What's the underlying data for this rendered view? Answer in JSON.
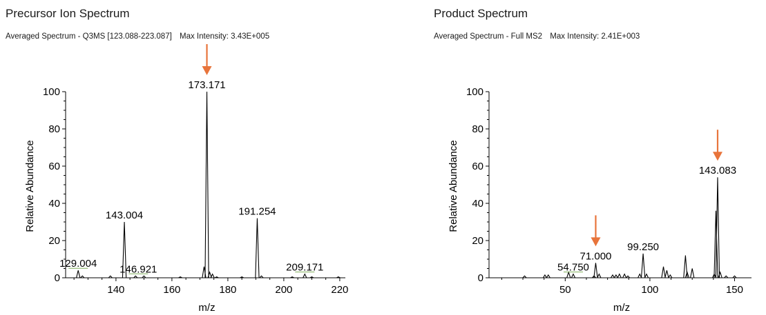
{
  "panels": [
    {
      "title": "Precursor Ion Spectrum",
      "subtitle_left": "Averaged Spectrum - Q3MS [123.088-223.087]",
      "subtitle_right": "Max Intensity: 3.43E+005"
    },
    {
      "title": "Product Spectrum",
      "subtitle_left": "Averaged Spectrum - Full MS2",
      "subtitle_right": "Max Intensity: 2.41E+003"
    }
  ],
  "colors": {
    "arrow": "#e8743b",
    "trace": "#000000",
    "label_underline": "#7fae5a"
  },
  "chart_data": [
    {
      "type": "line",
      "xlabel": "m/z",
      "ylabel": "Relative Abundance",
      "xlim": [
        122,
        222
      ],
      "ylim": [
        0,
        100
      ],
      "xticks": [
        140,
        160,
        180,
        200,
        220
      ],
      "yticks": [
        0,
        20,
        40,
        60,
        80,
        100
      ],
      "grid": false,
      "series": [
        {
          "peaks": [
            {
              "x": 126.5,
              "y": 4
            },
            {
              "x": 128.0,
              "y": 1
            },
            {
              "x": 138.0,
              "y": 1
            },
            {
              "x": 143.0,
              "y": 30
            },
            {
              "x": 147.0,
              "y": 1
            },
            {
              "x": 150.0,
              "y": 1
            },
            {
              "x": 163.0,
              "y": 0.5
            },
            {
              "x": 171.5,
              "y": 6
            },
            {
              "x": 172.5,
              "y": 100
            },
            {
              "x": 173.5,
              "y": 3
            },
            {
              "x": 174.5,
              "y": 2
            },
            {
              "x": 176.0,
              "y": 0.5
            },
            {
              "x": 185.0,
              "y": 0.5
            },
            {
              "x": 190.5,
              "y": 32
            },
            {
              "x": 192.0,
              "y": 1
            },
            {
              "x": 203.0,
              "y": 0.5
            },
            {
              "x": 207.5,
              "y": 2
            },
            {
              "x": 210.0,
              "y": 0.5
            },
            {
              "x": 219.5,
              "y": 0.5
            }
          ]
        }
      ],
      "labels": [
        {
          "text": "129.004",
          "x": 126.5,
          "y": 4
        },
        {
          "text": "143.004",
          "x": 143.0,
          "y": 30
        },
        {
          "text": "146.921",
          "x": 148.0,
          "y": 1
        },
        {
          "text": "173.171",
          "x": 172.5,
          "y": 100
        },
        {
          "text": "191.254",
          "x": 190.5,
          "y": 32
        },
        {
          "text": "209.171",
          "x": 207.5,
          "y": 2
        }
      ],
      "arrows": [
        172.5
      ]
    },
    {
      "type": "line",
      "xlabel": "m/z",
      "ylabel": "Relative Abundance",
      "xlim": [
        5,
        160
      ],
      "ylim": [
        0,
        100
      ],
      "xticks": [
        50,
        100,
        150
      ],
      "yticks": [
        0,
        20,
        40,
        60,
        80,
        100
      ],
      "grid": false,
      "series": [
        {
          "peaks": [
            {
              "x": 26,
              "y": 1
            },
            {
              "x": 38,
              "y": 1.5
            },
            {
              "x": 40,
              "y": 1.5
            },
            {
              "x": 52,
              "y": 3
            },
            {
              "x": 54.75,
              "y": 2
            },
            {
              "x": 67,
              "y": 1
            },
            {
              "x": 68,
              "y": 8
            },
            {
              "x": 70,
              "y": 2
            },
            {
              "x": 78,
              "y": 1.5
            },
            {
              "x": 80,
              "y": 1.5
            },
            {
              "x": 82,
              "y": 2
            },
            {
              "x": 85,
              "y": 2
            },
            {
              "x": 87,
              "y": 1
            },
            {
              "x": 94,
              "y": 2
            },
            {
              "x": 96,
              "y": 13
            },
            {
              "x": 98,
              "y": 2
            },
            {
              "x": 108,
              "y": 6
            },
            {
              "x": 110,
              "y": 4
            },
            {
              "x": 112,
              "y": 1.5
            },
            {
              "x": 121,
              "y": 12
            },
            {
              "x": 122,
              "y": 3
            },
            {
              "x": 125,
              "y": 5
            },
            {
              "x": 138,
              "y": 2
            },
            {
              "x": 139,
              "y": 36
            },
            {
              "x": 140,
              "y": 54
            },
            {
              "x": 141.5,
              "y": 3
            },
            {
              "x": 145,
              "y": 1
            },
            {
              "x": 150,
              "y": 1
            }
          ]
        }
      ],
      "labels": [
        {
          "text": "54.750",
          "x": 54.75,
          "y": 2
        },
        {
          "text": "71.000",
          "x": 68.0,
          "y": 8
        },
        {
          "text": "99.250",
          "x": 96.0,
          "y": 13
        },
        {
          "text": "143.083",
          "x": 140.0,
          "y": 54
        }
      ],
      "arrows": [
        68.0,
        140.0
      ]
    }
  ]
}
